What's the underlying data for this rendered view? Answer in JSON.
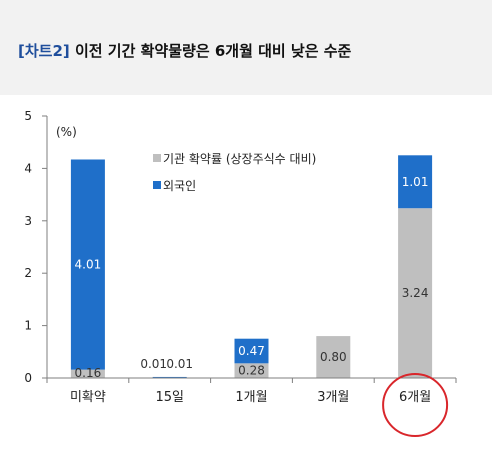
{
  "header": {
    "tag": "[차트2]",
    "title": "이전 기간 확약물량은 6개월 대비 낮은 수준"
  },
  "colors": {
    "header_bg": "#f2f2f2",
    "tag": "#1f4e9c",
    "institution": "#bfbfbf",
    "foreign": "#1f6fc9",
    "highlight_circle": "#d9262b"
  },
  "chart_data": {
    "type": "bar",
    "stacked": true,
    "unit_label": "(%)",
    "ylim": [
      0,
      5
    ],
    "yticks": [
      "0",
      "1",
      "2",
      "3",
      "4",
      "5"
    ],
    "grid": false,
    "legend_position": "top-center",
    "categories": [
      "미확약",
      "15일",
      "1개월",
      "3개월",
      "6개월"
    ],
    "series": [
      {
        "name": "기관 확약률 (상장주식수 대비)",
        "color": "#bfbfbf",
        "values": [
          0.16,
          0.01,
          0.28,
          0.8,
          3.24
        ],
        "labels": [
          "0.16",
          "0.01",
          "0.28",
          "0.80",
          "3.24"
        ]
      },
      {
        "name": "외국인",
        "color": "#1f6fc9",
        "values": [
          4.01,
          0.01,
          0.47,
          0.0,
          1.01
        ],
        "labels": [
          "4.01",
          "0.01",
          "0.47",
          "",
          "1.01"
        ]
      }
    ],
    "highlight_category": "6개월"
  }
}
